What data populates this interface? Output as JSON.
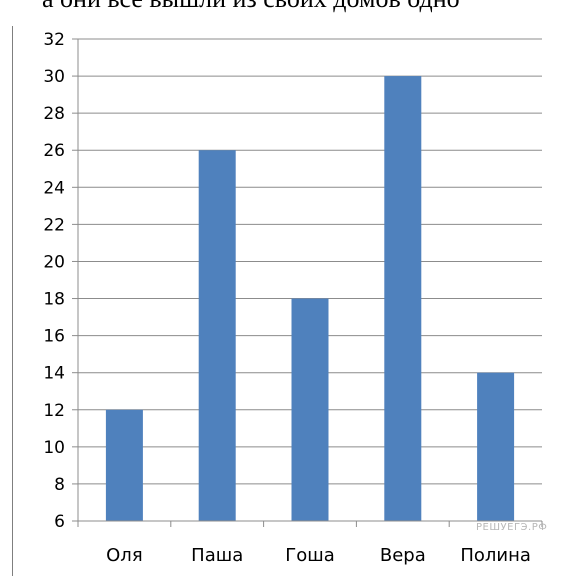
{
  "header_text": "а они все вышли из своих домов одно",
  "watermark": "РЕШУЕГЭ.РФ",
  "colors": {
    "bar": "#4f81bd",
    "grid": "#8c8c8c",
    "axis": "#8c8c8c"
  },
  "chart_data": {
    "type": "bar",
    "categories": [
      "Оля",
      "Паша",
      "Гоша",
      "Вера",
      "Полина"
    ],
    "values": [
      12,
      26,
      18,
      30,
      14
    ],
    "ylim": [
      6,
      32
    ],
    "yticks": [
      6,
      8,
      10,
      12,
      14,
      16,
      18,
      20,
      22,
      24,
      26,
      28,
      30,
      32
    ],
    "grid": true,
    "title": "",
    "xlabel": "",
    "ylabel": ""
  }
}
